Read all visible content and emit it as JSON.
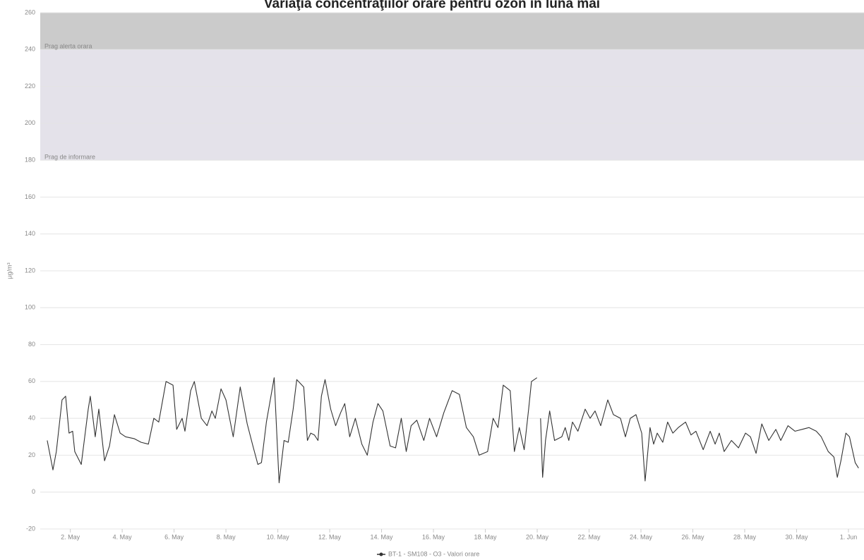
{
  "chart_data": {
    "type": "line",
    "title": "Variaţia concentraţiilor orare pentru ozon în luna mai",
    "y_label": "µg/m³",
    "ylim": [
      -20,
      260
    ],
    "yticks": [
      -20,
      0,
      20,
      40,
      60,
      80,
      100,
      120,
      140,
      160,
      180,
      200,
      220,
      240,
      260
    ],
    "xlim": [
      0.84,
      32.6
    ],
    "xticks": [
      {
        "value": 2,
        "label": "2. May"
      },
      {
        "value": 4,
        "label": "4. May"
      },
      {
        "value": 6,
        "label": "6. May"
      },
      {
        "value": 8,
        "label": "8. May"
      },
      {
        "value": 10,
        "label": "10. May"
      },
      {
        "value": 12,
        "label": "12. May"
      },
      {
        "value": 14,
        "label": "14. May"
      },
      {
        "value": 16,
        "label": "16. May"
      },
      {
        "value": 18,
        "label": "18. May"
      },
      {
        "value": 20,
        "label": "20. May"
      },
      {
        "value": 22,
        "label": "22. May"
      },
      {
        "value": 24,
        "label": "24. May"
      },
      {
        "value": 26,
        "label": "26. May"
      },
      {
        "value": 28,
        "label": "28. May"
      },
      {
        "value": 30,
        "label": "30. May"
      },
      {
        "value": 32,
        "label": "1. Jun"
      }
    ],
    "grid": true,
    "legend": "bottom",
    "plot_bands": [
      {
        "from": 180,
        "to": 240,
        "label": "Prag de informare",
        "color": "#e4e2ea"
      },
      {
        "from": 240,
        "to": 260,
        "label": "Prag alerta orara",
        "color": "#cbcbcb"
      }
    ],
    "x": [
      1.11,
      1.33,
      1.46,
      1.68,
      1.82,
      1.95,
      2.09,
      2.17,
      2.42,
      2.69,
      2.77,
      2.96,
      3.1,
      3.32,
      3.51,
      3.7,
      3.92,
      4.13,
      4.46,
      4.73,
      5.01,
      5.22,
      5.41,
      5.69,
      5.96,
      6.1,
      6.31,
      6.42,
      6.64,
      6.78,
      7.05,
      7.27,
      7.46,
      7.59,
      7.81,
      8.0,
      8.28,
      8.55,
      8.82,
      9.04,
      9.23,
      9.37,
      9.56,
      9.86,
      10.05,
      10.24,
      10.4,
      10.59,
      10.73,
      11.0,
      11.14,
      11.27,
      11.41,
      11.55,
      11.68,
      11.82,
      12.04,
      12.23,
      12.42,
      12.58,
      12.77,
      12.99,
      13.24,
      13.45,
      13.67,
      13.86,
      14.05,
      14.33,
      14.54,
      14.76,
      14.95,
      15.14,
      15.36,
      15.63,
      15.85,
      16.12,
      16.4,
      16.72,
      17.0,
      17.27,
      17.54,
      17.76,
      18.09,
      18.3,
      18.49,
      18.69,
      18.96,
      19.12,
      19.31,
      19.5,
      19.67,
      19.78,
      19.99,
      20.06,
      20.13,
      20.21,
      20.32,
      20.48,
      20.67,
      20.95,
      21.08,
      21.22,
      21.36,
      21.57,
      21.85,
      22.04,
      22.23,
      22.45,
      22.72,
      22.94,
      23.21,
      23.4,
      23.59,
      23.81,
      24.03,
      24.16,
      24.35,
      24.49,
      24.63,
      24.84,
      25.03,
      25.23,
      25.44,
      25.72,
      25.93,
      26.12,
      26.4,
      26.67,
      26.86,
      27.02,
      27.21,
      27.49,
      27.76,
      28.03,
      28.22,
      28.44,
      28.66,
      28.93,
      29.2,
      29.39,
      29.67,
      29.94,
      30.21,
      30.48,
      30.76,
      30.95,
      31.22,
      31.44,
      31.57,
      31.71,
      31.9,
      32.04,
      32.26,
      32.39
    ],
    "series": [
      {
        "name": "BT-1 - SM108 - O3 - Valori orare",
        "color": "#333333",
        "values": [
          28,
          12,
          22,
          50,
          52,
          32,
          33,
          22,
          15,
          45,
          52,
          30,
          45,
          17,
          25,
          42,
          32,
          30,
          29,
          27,
          26,
          40,
          38,
          60,
          58,
          34,
          40,
          33,
          55,
          60,
          40,
          36,
          44,
          40,
          56,
          50,
          30,
          57,
          37,
          25,
          15,
          16,
          38,
          62,
          5,
          28,
          27,
          45,
          61,
          57,
          28,
          32,
          31,
          28,
          52,
          61,
          45,
          36,
          43,
          48,
          30,
          40,
          26,
          20,
          38,
          48,
          44,
          25,
          24,
          40,
          22,
          36,
          39,
          28,
          40,
          30,
          43,
          55,
          53,
          35,
          30,
          20,
          22,
          40,
          35,
          58,
          55,
          22,
          35,
          23,
          45,
          60,
          62,
          null,
          40,
          8,
          28,
          44,
          28,
          30,
          35,
          28,
          38,
          33,
          45,
          40,
          44,
          36,
          50,
          42,
          40,
          30,
          40,
          42,
          32,
          6,
          35,
          26,
          32,
          27,
          38,
          32,
          35,
          38,
          31,
          33,
          23,
          33,
          26,
          32,
          22,
          28,
          24,
          32,
          30,
          21,
          37,
          28,
          34,
          28,
          36,
          33,
          34,
          35,
          33,
          30,
          22,
          19,
          8,
          17,
          32,
          30,
          16,
          13
        ]
      }
    ]
  }
}
